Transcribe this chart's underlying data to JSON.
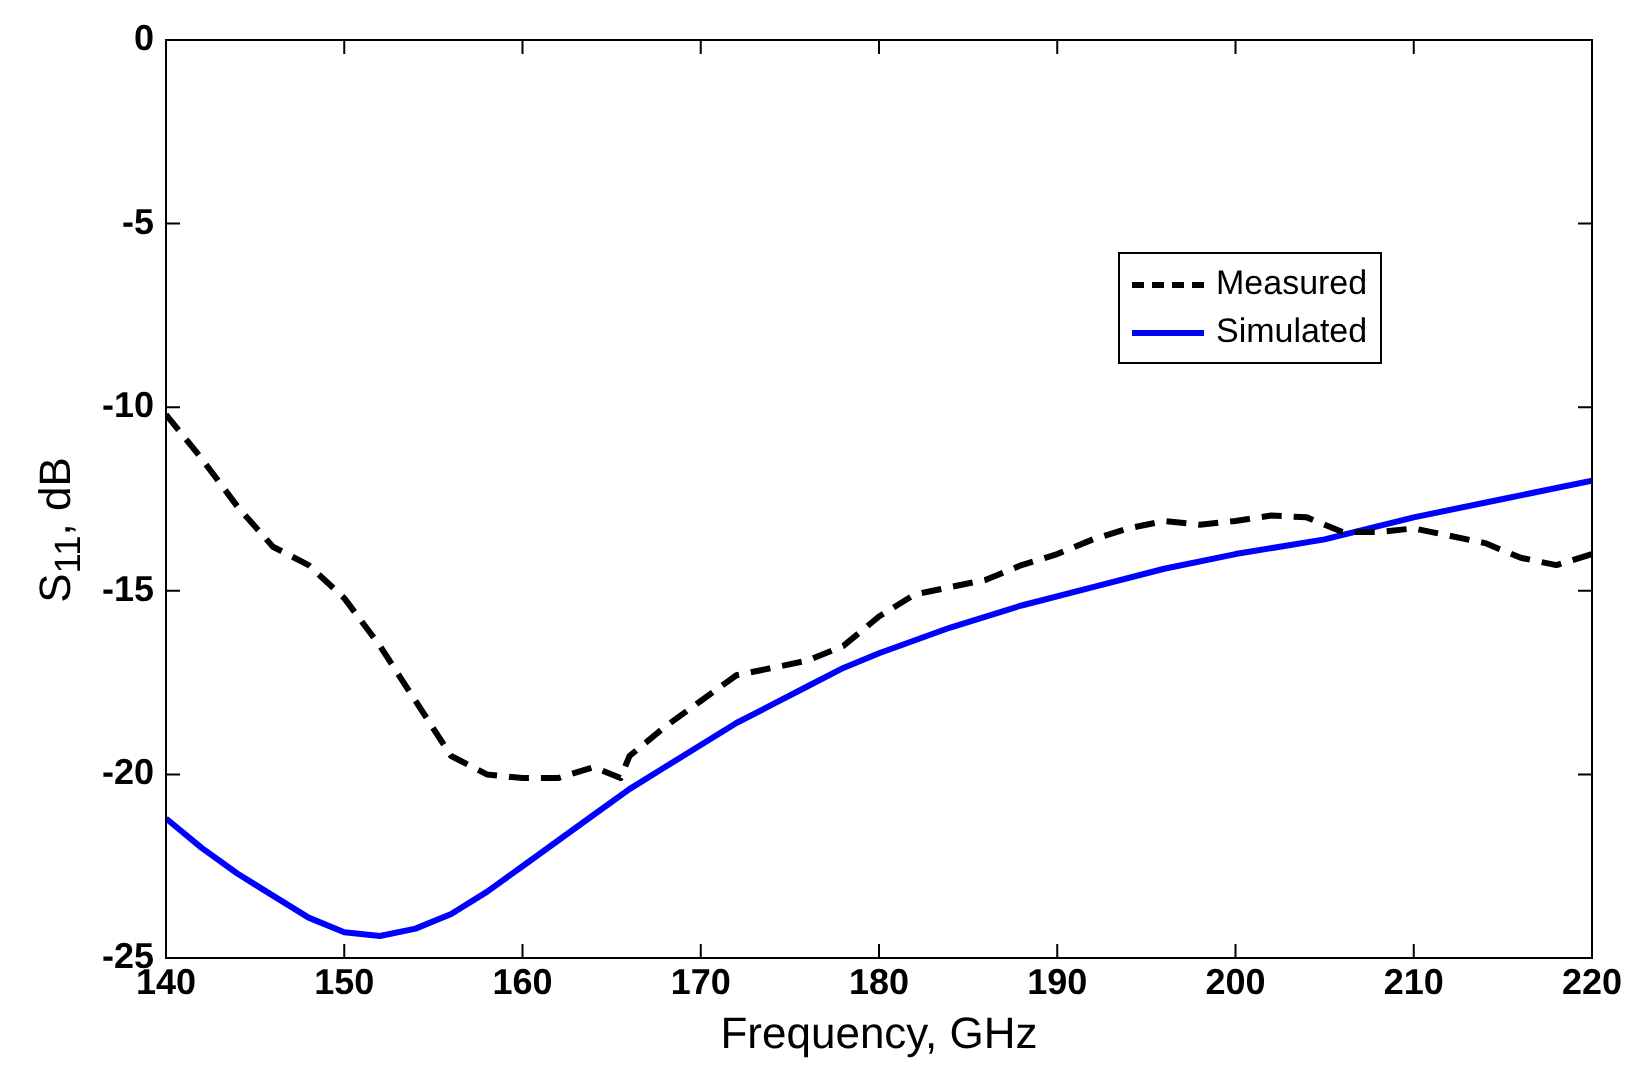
{
  "chart_data": {
    "type": "line",
    "xlabel": "Frequency, GHz",
    "ylabel": "S$_{11}$, dB",
    "xlim": [
      140,
      220
    ],
    "xticks": [
      140,
      150,
      160,
      170,
      180,
      190,
      200,
      210,
      220
    ],
    "ylim": [
      -25,
      0
    ],
    "yticks": [
      -25,
      -20,
      -15,
      -10,
      -5,
      0
    ],
    "grid": false,
    "legend": "top right",
    "marker": "none",
    "series": [
      {
        "name": "Measured",
        "color": "#000000",
        "line_style": "dashed",
        "x": [
          140,
          142,
          144,
          146,
          148,
          150,
          152,
          154,
          156,
          158,
          160,
          162,
          164,
          165.5,
          166,
          168,
          170,
          172,
          174,
          176,
          178,
          180,
          182,
          184,
          186,
          188,
          190,
          192,
          194,
          196,
          198,
          200,
          202,
          204,
          206,
          208,
          210,
          212,
          214,
          216,
          218,
          220
        ],
        "values": [
          -10.2,
          -11.4,
          -12.7,
          -13.8,
          -14.3,
          -15.2,
          -16.5,
          -18.0,
          -19.5,
          -20.0,
          -20.1,
          -20.1,
          -19.8,
          -20.1,
          -19.5,
          -18.7,
          -18.0,
          -17.3,
          -17.1,
          -16.9,
          -16.5,
          -15.7,
          -15.1,
          -14.9,
          -14.7,
          -14.3,
          -14.0,
          -13.6,
          -13.3,
          -13.1,
          -13.2,
          -13.1,
          -12.95,
          -13.0,
          -13.4,
          -13.4,
          -13.3,
          -13.5,
          -13.7,
          -14.1,
          -14.3,
          -14.0
        ]
      },
      {
        "name": "Simulated",
        "color": "#0000ff",
        "line_style": "solid",
        "x": [
          140,
          142,
          144,
          146,
          148,
          150,
          152,
          154,
          156,
          158,
          160,
          162,
          164,
          166,
          168,
          170,
          172,
          174,
          176,
          178,
          180,
          184,
          188,
          192,
          196,
          200,
          205,
          210,
          215,
          220
        ],
        "values": [
          -21.2,
          -22.0,
          -22.7,
          -23.3,
          -23.9,
          -24.3,
          -24.4,
          -24.2,
          -23.8,
          -23.2,
          -22.5,
          -21.8,
          -21.1,
          -20.4,
          -19.8,
          -19.2,
          -18.6,
          -18.1,
          -17.6,
          -17.1,
          -16.7,
          -16.0,
          -15.4,
          -14.9,
          -14.4,
          -14.0,
          -13.6,
          -13.0,
          -12.5,
          -12.0
        ]
      }
    ]
  }
}
